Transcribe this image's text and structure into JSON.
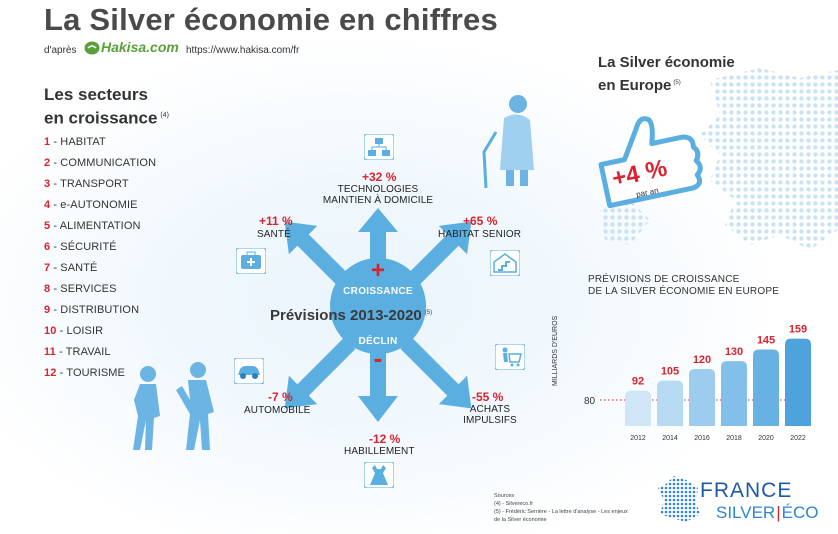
{
  "header": {
    "title": "La Silver économie en chiffres",
    "byline": "d'après",
    "brand": "Hakisa.com",
    "url": "https://www.hakisa.com/fr"
  },
  "sectors": {
    "title_line1": "Les secteurs",
    "title_line2": "en croissance",
    "note": "(4)",
    "items": [
      {
        "num": "1",
        "label": "HABITAT"
      },
      {
        "num": "2",
        "label": "COMMUNICATION"
      },
      {
        "num": "3",
        "label": "TRANSPORT"
      },
      {
        "num": "4",
        "label": "e-AUTONOMIE"
      },
      {
        "num": "5",
        "label": "ALIMENTATION"
      },
      {
        "num": "6",
        "label": "SÉCURITÉ"
      },
      {
        "num": "7",
        "label": "SANTÉ"
      },
      {
        "num": "8",
        "label": "SERVICES"
      },
      {
        "num": "9",
        "label": "DISTRIBUTION"
      },
      {
        "num": "10",
        "label": "LOISIR"
      },
      {
        "num": "11",
        "label": "TRAVAIL"
      },
      {
        "num": "12",
        "label": "TOURISME"
      }
    ]
  },
  "forecast": {
    "title": "Prévisions 2013-2020",
    "note": "(5)",
    "croissance": "CROISSANCE",
    "declin": "DÉCLIN",
    "plus": "+",
    "minus": "-",
    "technologies": {
      "pct": "+32 %",
      "line1": "TECHNOLOGIES",
      "line2": "MAINTIEN À DOMICILE"
    },
    "sante": {
      "pct": "+11 %",
      "label": "SANTÉ"
    },
    "habitat": {
      "pct": "+65 %",
      "label": "HABITAT SENIOR"
    },
    "automobile": {
      "pct": "-7 %",
      "label": "AUTOMOBILE"
    },
    "achats": {
      "pct": "-55 %",
      "line1": "ACHATS",
      "line2": "IMPULSIFS"
    },
    "habillement": {
      "pct": "-12 %",
      "label": "HABILLEMENT"
    }
  },
  "europe": {
    "title_line1": "La Silver économie",
    "title_line2": "en Europe",
    "note": "(5)",
    "growth": "+4 %",
    "growth_sub": "par an"
  },
  "chart_data": {
    "type": "bar",
    "title": "PRÉVISIONS DE CROISSANCE DE LA SILVER ÉCONOMIE EN EUROPE",
    "title_line1": "PRÉVISIONS DE CROISSANCE",
    "title_line2": "DE LA SILVER ÉCONOMIE EN EUROPE",
    "ylabel": "MILLIARDS D'EUROS",
    "baseline_label": "80",
    "categories": [
      "2012",
      "2014",
      "2016",
      "2018",
      "2020",
      "2022"
    ],
    "values": [
      92,
      105,
      120,
      130,
      145,
      159
    ],
    "baseline": 80,
    "colors": [
      "#cfe6f6",
      "#b6daf2",
      "#9dcdee",
      "#82bfe9",
      "#68b1e3",
      "#4fa3dd"
    ]
  },
  "sources": {
    "line1": "Sources",
    "line2": "(4) - Silvereco.fr",
    "line3": "(5) - Frédéric Serrière - La lettre d'analyse - Les enjeux",
    "line4": "de la Silver économie"
  },
  "logo": {
    "france": "FRANCE",
    "silver": "SILVER",
    "eco": "ÉCO"
  }
}
